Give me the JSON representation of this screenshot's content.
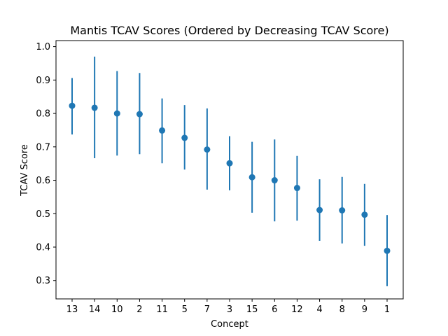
{
  "chart_data": {
    "type": "scatter",
    "title": "Mantis TCAV Scores (Ordered by Decreasing TCAV Score)",
    "xlabel": "Concept",
    "ylabel": "TCAV Score",
    "categories": [
      "13",
      "14",
      "10",
      "2",
      "11",
      "5",
      "7",
      "3",
      "15",
      "6",
      "12",
      "4",
      "8",
      "9",
      "1"
    ],
    "values": [
      0.823,
      0.817,
      0.8,
      0.798,
      0.749,
      0.727,
      0.692,
      0.651,
      0.609,
      0.6,
      0.577,
      0.511,
      0.51,
      0.497,
      0.389
    ],
    "error_low": [
      0.737,
      0.666,
      0.674,
      0.678,
      0.651,
      0.632,
      0.572,
      0.57,
      0.503,
      0.477,
      0.479,
      0.419,
      0.411,
      0.404,
      0.283
    ],
    "error_high": [
      0.906,
      0.97,
      0.927,
      0.921,
      0.845,
      0.825,
      0.815,
      0.732,
      0.715,
      0.722,
      0.673,
      0.603,
      0.61,
      0.589,
      0.496
    ],
    "ylim": [
      0.245,
      1.018
    ],
    "yticks": [
      "0.3",
      "0.4",
      "0.5",
      "0.6",
      "0.7",
      "0.8",
      "0.9",
      "1.0"
    ],
    "color": "#1f77b4",
    "grid": false
  }
}
